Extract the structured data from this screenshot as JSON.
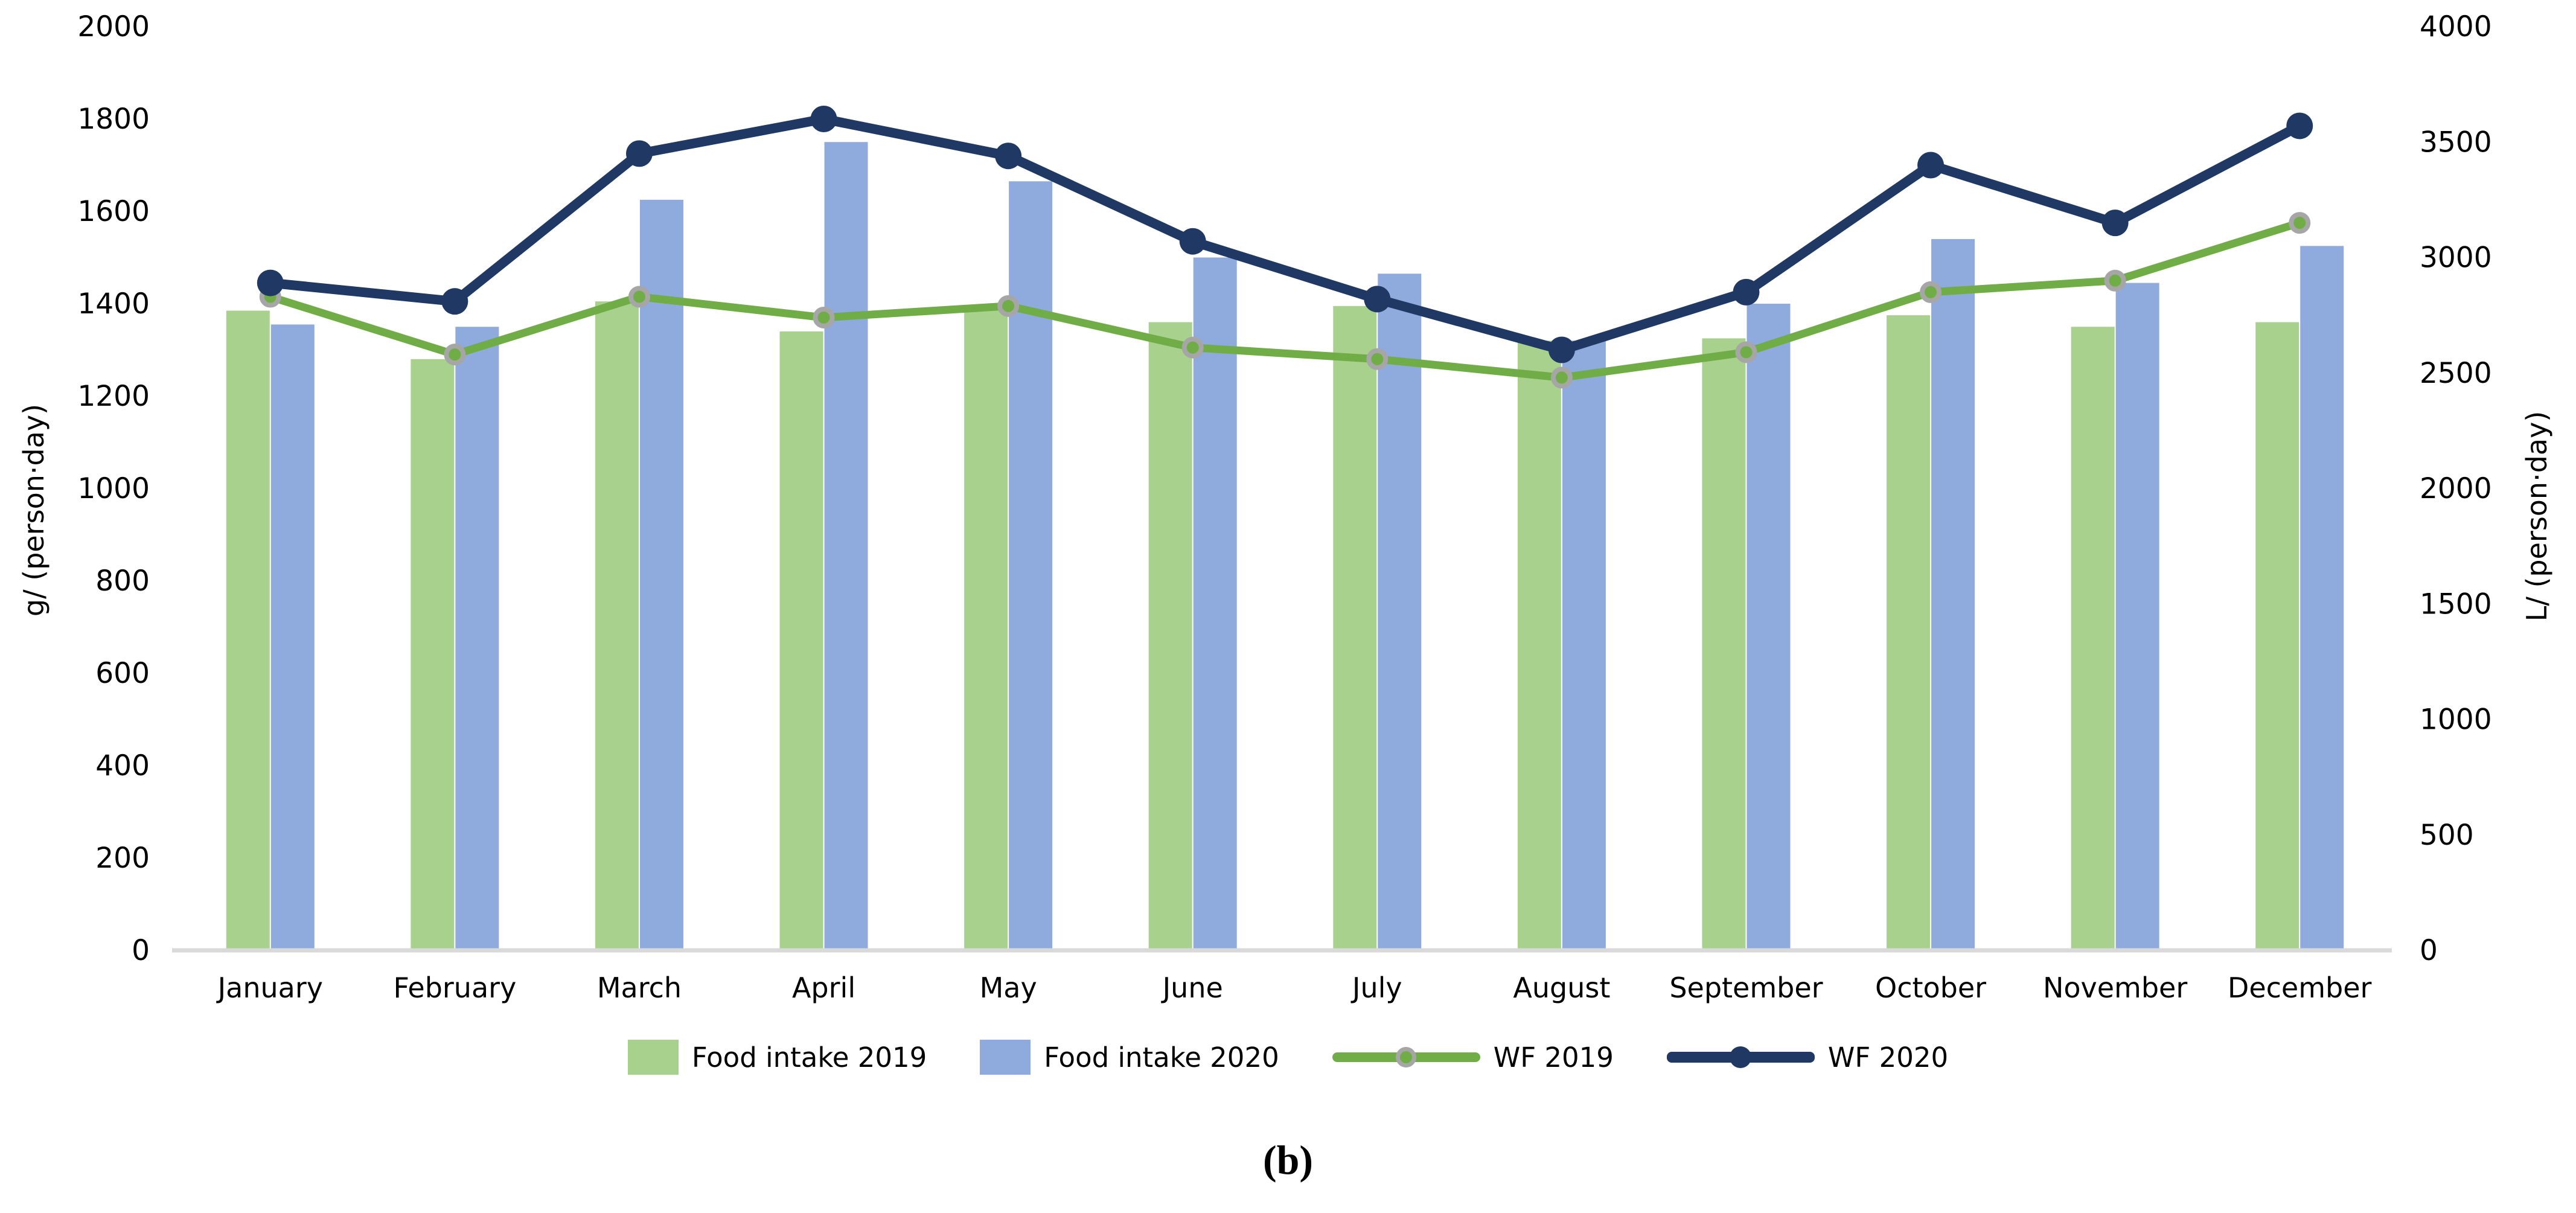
{
  "caption": "(b)",
  "colors": {
    "bar_2019": "#a9d18e",
    "bar_2020": "#8faadc",
    "line_wf_2019": "#70ad47",
    "line_wf_2020": "#1f3864",
    "marker_ring": "#a6a6a6",
    "axis_line": "#d9d9d9",
    "text": "#000000"
  },
  "chart_data": {
    "type": "bar",
    "subtype": "grouped-bars-with-lines-combo",
    "title": "",
    "categories": [
      "January",
      "February",
      "March",
      "April",
      "May",
      "June",
      "July",
      "August",
      "September",
      "October",
      "November",
      "December"
    ],
    "series": [
      {
        "name": "Food intake 2019",
        "type": "bar",
        "axis": "left",
        "color": "#a9d18e",
        "values": [
          1385,
          1280,
          1405,
          1340,
          1390,
          1360,
          1395,
          1320,
          1325,
          1375,
          1350,
          1360
        ]
      },
      {
        "name": "Food intake 2020",
        "type": "bar",
        "axis": "left",
        "color": "#8faadc",
        "values": [
          1355,
          1350,
          1625,
          1750,
          1665,
          1500,
          1465,
          1320,
          1400,
          1540,
          1445,
          1525
        ]
      },
      {
        "name": "WF 2019",
        "type": "line",
        "axis": "right",
        "color": "#70ad47",
        "marker": "circle-gray-ring",
        "values": [
          2830,
          2580,
          2830,
          2740,
          2790,
          2610,
          2560,
          2480,
          2590,
          2850,
          2900,
          3150
        ]
      },
      {
        "name": "WF 2020",
        "type": "line",
        "axis": "right",
        "color": "#1f3864",
        "marker": "circle",
        "values": [
          2890,
          2810,
          3450,
          3600,
          3440,
          3070,
          2820,
          2600,
          2850,
          3400,
          3150,
          3570
        ]
      }
    ],
    "left_axis": {
      "label": "g/ (person·day)",
      "min": 0,
      "max": 2000,
      "step": 200,
      "ticks": [
        0,
        200,
        400,
        600,
        800,
        1000,
        1200,
        1400,
        1600,
        1800,
        2000
      ]
    },
    "right_axis": {
      "label": "L/ (person·day)",
      "min": 0,
      "max": 4000,
      "step": 500,
      "ticks": [
        0,
        500,
        1000,
        1500,
        2000,
        2500,
        3000,
        3500,
        4000
      ]
    },
    "legend_position": "bottom",
    "grid": false
  }
}
